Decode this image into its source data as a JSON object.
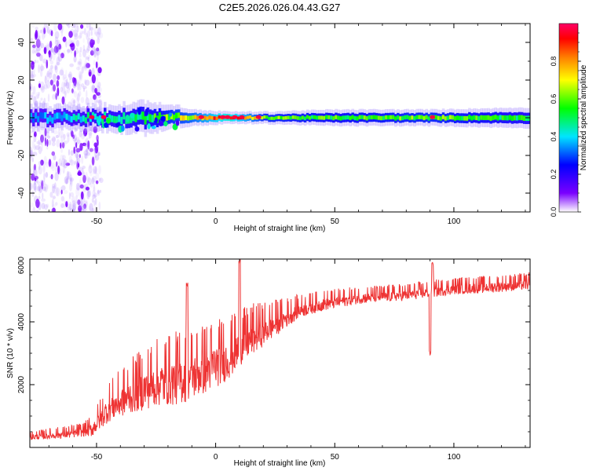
{
  "chart_data": [
    {
      "type": "heatmap",
      "title": "C2E5.2026.026.04.43.G27",
      "xlabel": "Height of straight line (km)",
      "ylabel": "Frequency (Hz)",
      "xlim": [
        -78,
        132
      ],
      "ylim": [
        -50,
        50
      ],
      "xticks": [
        -50,
        0,
        50,
        100
      ],
      "yticks": [
        -40,
        -20,
        0,
        20,
        40
      ],
      "colorbar": {
        "label": "Normalized spectral amplitude",
        "ticks": [
          0.0,
          0.2,
          0.4,
          0.6,
          0.8
        ],
        "range": [
          0,
          1
        ],
        "colormap": [
          "#ffffff",
          "#7a00ff",
          "#0000ff",
          "#00e5ff",
          "#00ff00",
          "#ffff00",
          "#ff8000",
          "#ff0000",
          "#ff0066"
        ]
      },
      "band": {
        "center_hz": 0,
        "description_points": [
          {
            "x": -75,
            "halfwidth_hz": 3,
            "amplitude": 0.35
          },
          {
            "x": -50,
            "halfwidth_hz": 3,
            "amplitude": 0.45
          },
          {
            "x": -30,
            "halfwidth_hz": 4,
            "amplitude": 0.5
          },
          {
            "x": -10,
            "halfwidth_hz": 2,
            "amplitude": 0.7
          },
          {
            "x": 5,
            "halfwidth_hz": 1.5,
            "amplitude": 0.95
          },
          {
            "x": 20,
            "halfwidth_hz": 1.5,
            "amplitude": 0.6
          },
          {
            "x": 50,
            "halfwidth_hz": 2,
            "amplitude": 0.55
          },
          {
            "x": 90,
            "halfwidth_hz": 2,
            "amplitude": 0.6
          },
          {
            "x": 130,
            "halfwidth_hz": 2.5,
            "amplitude": 0.5
          }
        ],
        "hotspots": [
          -52,
          -47,
          -6,
          3,
          5,
          8,
          11,
          18,
          91
        ]
      },
      "noise_region_x": [
        -78,
        -50
      ]
    },
    {
      "type": "line",
      "xlabel": "Height of straight line (km)",
      "ylabel": "SNR (10 * v/v)",
      "xlim": [
        -78,
        132
      ],
      "ylim": [
        0,
        6000
      ],
      "xticks": [
        -50,
        0,
        50,
        100
      ],
      "yticks": [
        2000,
        4000,
        6000
      ],
      "color": "#ee3333",
      "trend": {
        "x": [
          -78,
          -60,
          -52,
          -45,
          -35,
          -25,
          -15,
          -5,
          5,
          15,
          25,
          35,
          45,
          60,
          80,
          100,
          115,
          132
        ],
        "y": [
          300,
          400,
          500,
          1100,
          1500,
          1800,
          1900,
          2200,
          2600,
          3300,
          3800,
          4300,
          4500,
          4700,
          4800,
          5000,
          5050,
          5150
        ]
      },
      "spread": {
        "x": [
          -78,
          -55,
          -45,
          -30,
          -15,
          0,
          15,
          35,
          60,
          100,
          132
        ],
        "y": [
          150,
          250,
          700,
          1100,
          1300,
          1200,
          900,
          400,
          300,
          300,
          300
        ]
      },
      "events": [
        {
          "x": -12,
          "y": 5250
        },
        {
          "x": 10,
          "y": 6000
        },
        {
          "x": 90,
          "y": 3100
        },
        {
          "x": 91,
          "y": 5900
        }
      ]
    }
  ]
}
